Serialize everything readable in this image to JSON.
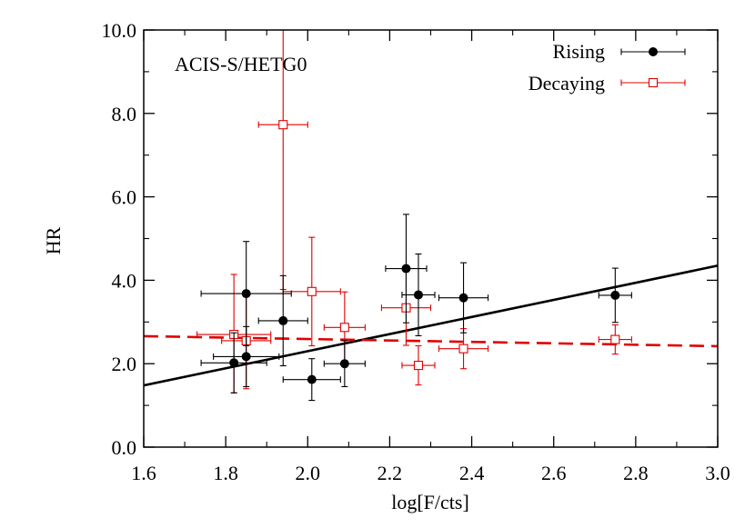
{
  "chart_data": {
    "type": "scatter",
    "title": "",
    "annotation": "ACIS-S/HETG0",
    "xlabel": "log[F/cts]",
    "ylabel": "HR",
    "xlim": [
      1.6,
      3.0
    ],
    "ylim": [
      0.0,
      10.0
    ],
    "xticks": [
      1.6,
      1.8,
      2.0,
      2.2,
      2.4,
      2.6,
      2.8,
      3.0
    ],
    "xtick_labels": [
      "1.6",
      "1.8",
      "2.0",
      "2.2",
      "2.4",
      "2.6",
      "2.8",
      "3.0"
    ],
    "yticks": [
      0,
      2,
      4,
      6,
      8,
      10
    ],
    "ytick_labels": [
      "0.0",
      "2.0",
      "4.0",
      "6.0",
      "8.0",
      "10.0"
    ],
    "legend_position": "top-right",
    "series": [
      {
        "name": "Rising",
        "color": "#000000",
        "marker": "filled-circle",
        "points": [
          {
            "x": 1.82,
            "y": 2.02,
            "xerr": 0.08,
            "yerr_low": 0.72,
            "yerr_high": 0.72
          },
          {
            "x": 1.85,
            "y": 2.17,
            "xerr": 0.08,
            "yerr_low": 0.72,
            "yerr_high": 0.72
          },
          {
            "x": 1.85,
            "y": 3.68,
            "xerr": 0.11,
            "yerr_low": 1.25,
            "yerr_high": 1.25
          },
          {
            "x": 1.94,
            "y": 3.03,
            "xerr": 0.06,
            "yerr_low": 1.08,
            "yerr_high": 1.08
          },
          {
            "x": 2.01,
            "y": 1.62,
            "xerr": 0.07,
            "yerr_low": 0.5,
            "yerr_high": 0.5
          },
          {
            "x": 2.09,
            "y": 2.0,
            "xerr": 0.05,
            "yerr_low": 0.55,
            "yerr_high": 0.55
          },
          {
            "x": 2.24,
            "y": 4.28,
            "xerr": 0.05,
            "yerr_low": 1.3,
            "yerr_high": 1.3
          },
          {
            "x": 2.27,
            "y": 3.65,
            "xerr": 0.04,
            "yerr_low": 0.98,
            "yerr_high": 0.98
          },
          {
            "x": 2.38,
            "y": 3.58,
            "xerr": 0.06,
            "yerr_low": 0.84,
            "yerr_high": 0.84
          },
          {
            "x": 2.75,
            "y": 3.64,
            "xerr": 0.04,
            "yerr_low": 0.65,
            "yerr_high": 0.65
          }
        ],
        "fit": {
          "x": [
            1.6,
            3.0
          ],
          "y": [
            1.48,
            4.35
          ],
          "style": "solid"
        }
      },
      {
        "name": "Decaying",
        "color": "#e00000",
        "marker": "open-square",
        "points": [
          {
            "x": 1.82,
            "y": 2.7,
            "xerr": 0.09,
            "yerr_low": 1.4,
            "yerr_high": 1.44
          },
          {
            "x": 1.85,
            "y": 2.55,
            "xerr": 0.06,
            "yerr_low": 1.15,
            "yerr_high": 1.15
          },
          {
            "x": 1.94,
            "y": 7.73,
            "xerr": 0.06,
            "yerr_low": 3.95,
            "yerr_high": 2.27
          },
          {
            "x": 2.01,
            "y": 3.73,
            "xerr": 0.07,
            "yerr_low": 1.3,
            "yerr_high": 1.3
          },
          {
            "x": 2.09,
            "y": 2.87,
            "xerr": 0.05,
            "yerr_low": 0.85,
            "yerr_high": 0.85
          },
          {
            "x": 2.24,
            "y": 3.34,
            "xerr": 0.06,
            "yerr_low": 0.9,
            "yerr_high": 0.9
          },
          {
            "x": 2.27,
            "y": 1.96,
            "xerr": 0.04,
            "yerr_low": 0.47,
            "yerr_high": 0.47
          },
          {
            "x": 2.38,
            "y": 2.36,
            "xerr": 0.06,
            "yerr_low": 0.48,
            "yerr_high": 0.48
          },
          {
            "x": 2.75,
            "y": 2.58,
            "xerr": 0.04,
            "yerr_low": 0.35,
            "yerr_high": 0.35
          }
        ],
        "fit": {
          "x": [
            1.6,
            3.0
          ],
          "y": [
            2.66,
            2.42
          ],
          "style": "dashed"
        }
      }
    ]
  }
}
